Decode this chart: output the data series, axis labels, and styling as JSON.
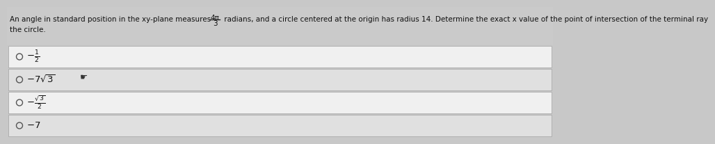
{
  "bg_color": "#c8c8c8",
  "header_bg": "#d4d4d4",
  "row_bg_light": "#f0f0f0",
  "row_bg_dark": "#e0e0e0",
  "border_color": "#aaaaaa",
  "text_color": "#111111",
  "title_line1": "An angle in standard position in the xy-plane measures ",
  "frac_num": "4π",
  "frac_den": "3",
  "title_mid": " radians, and a circle centered at the origin has radius 14. Determine the exact x value of the point of intersection of the terminal ray",
  "title_line2": "the circle.",
  "options_math": [
    "-\\frac{1}{2}",
    "-7\\sqrt{3}",
    "-\\frac{\\sqrt{3}}{2}",
    "-7"
  ],
  "title_fontsize": 7.5,
  "option_fontsize": 9.5,
  "radio_color": "#555555",
  "cursor_row": 1
}
